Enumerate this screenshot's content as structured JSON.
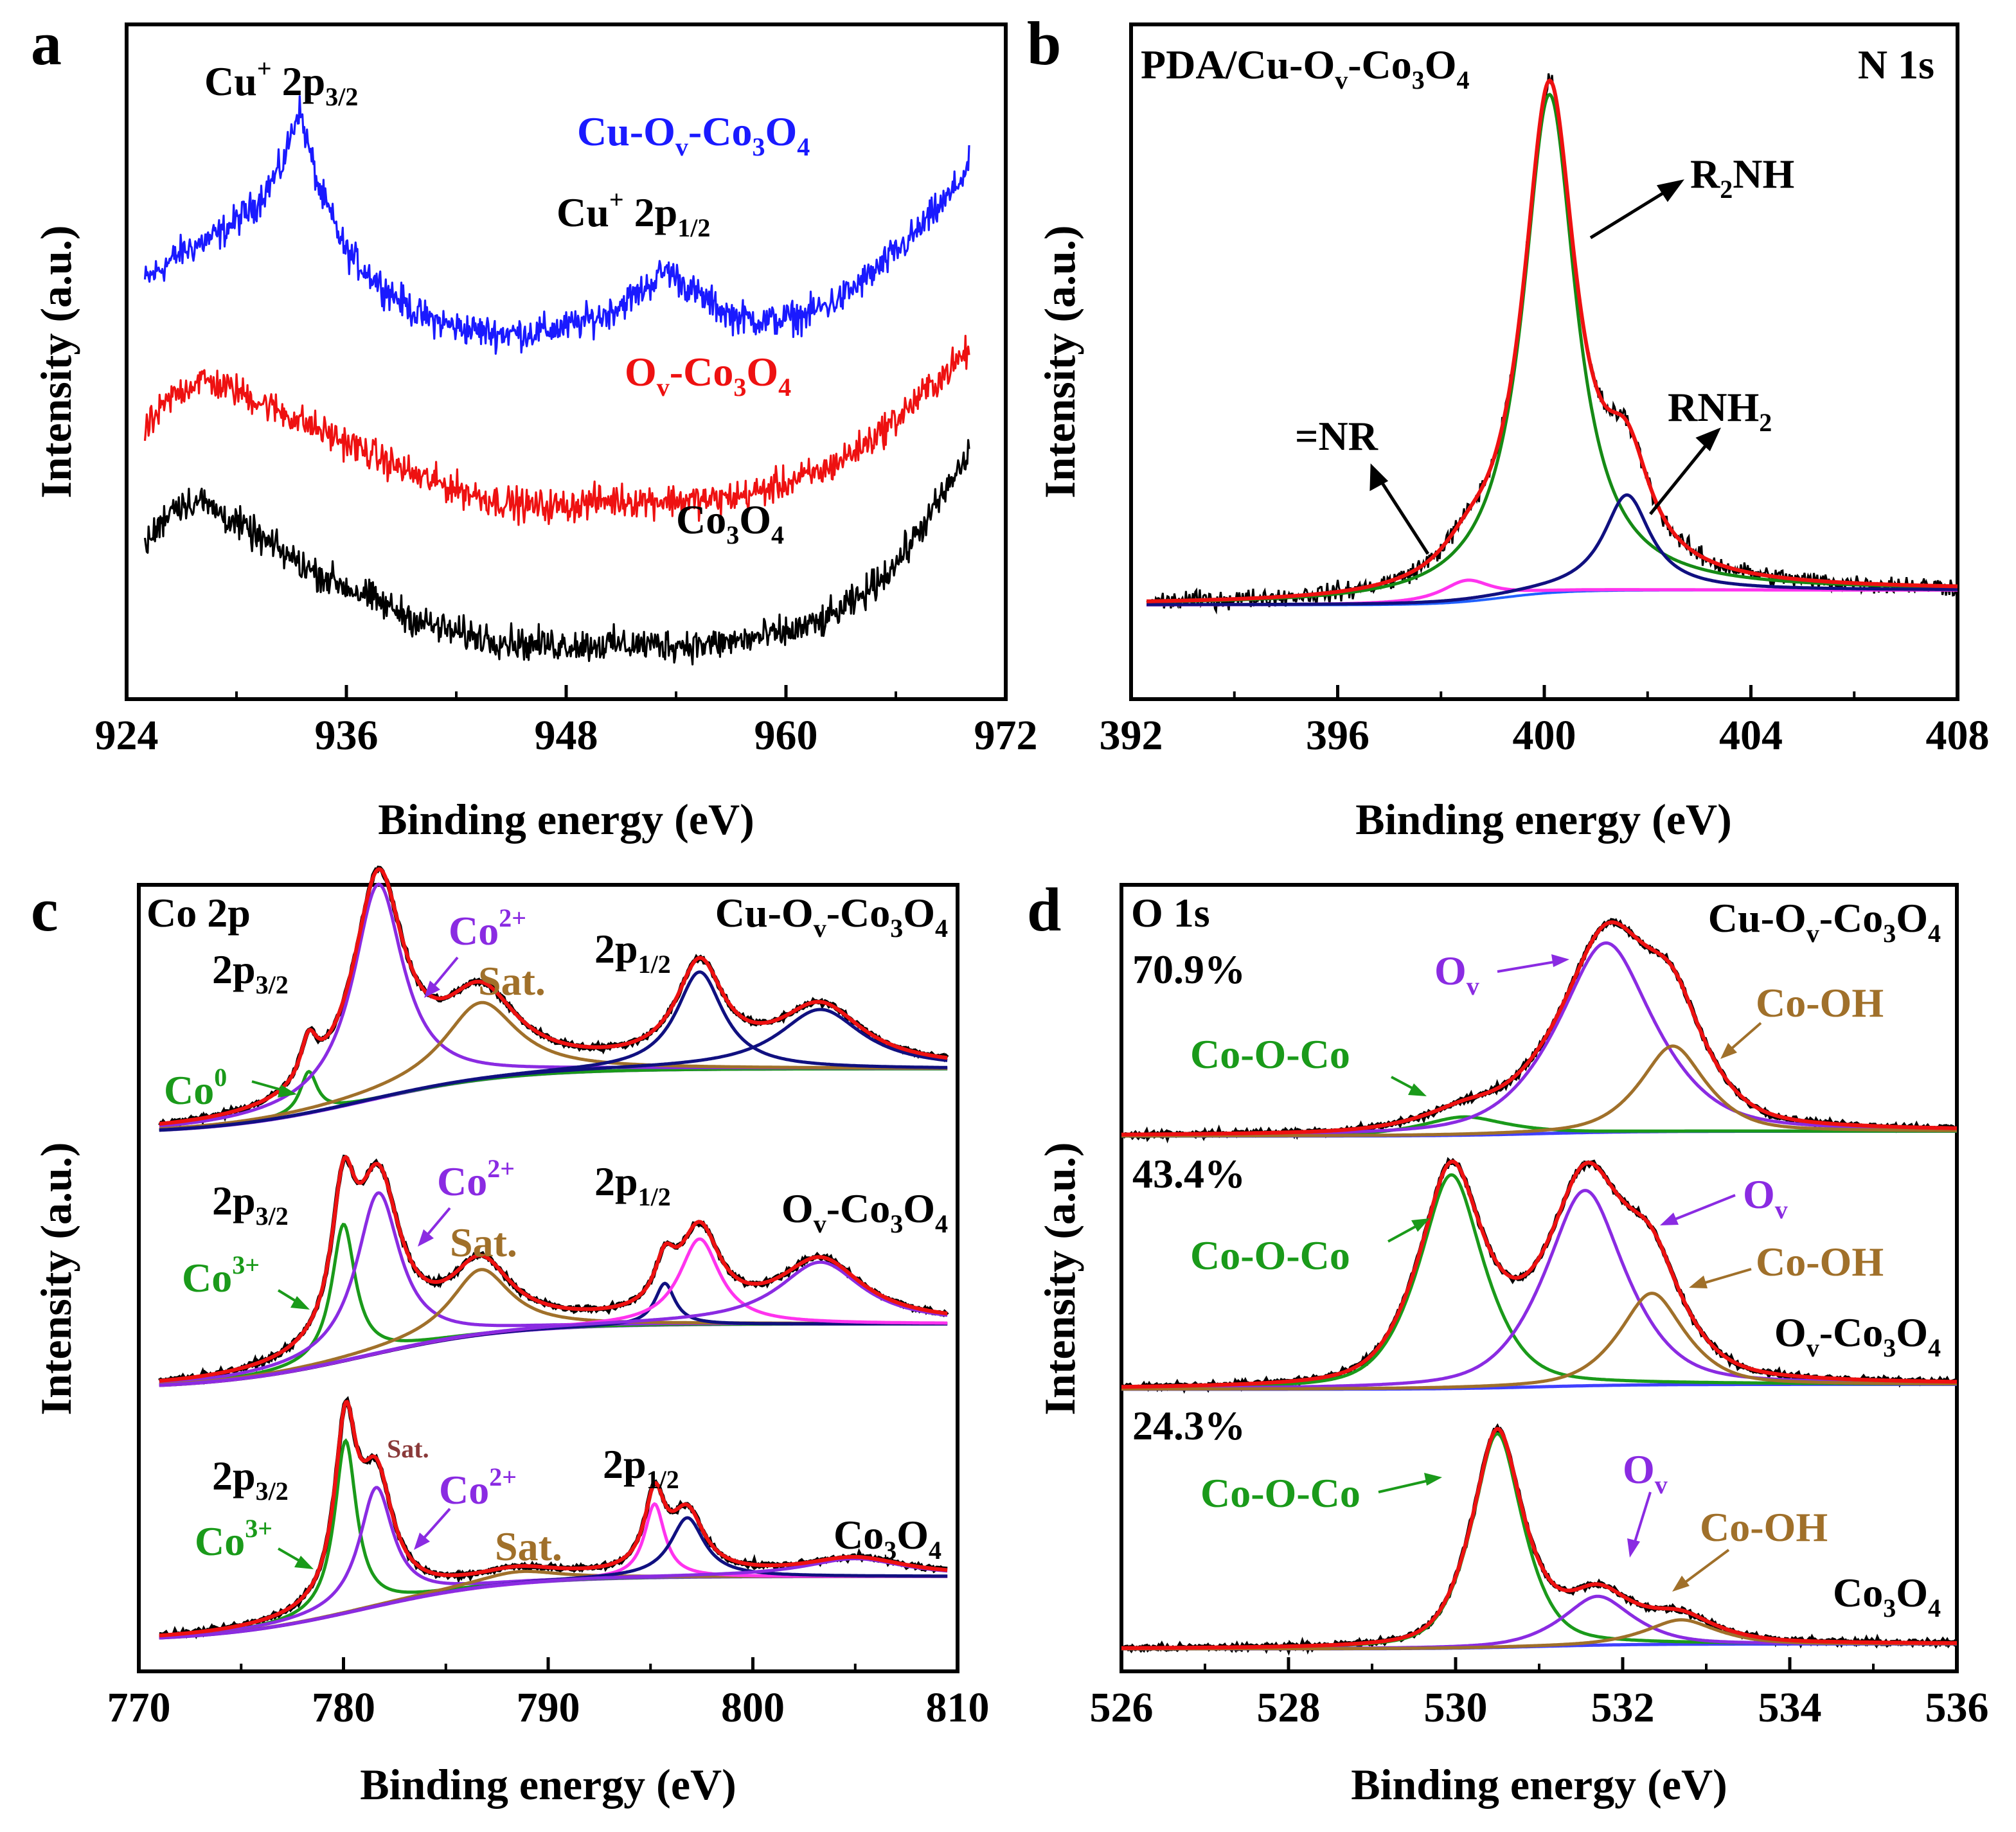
{
  "chart_data": [
    {
      "panel": "a",
      "type": "line",
      "xlabel": "Binding energy (eV)",
      "ylabel": "Intensity (a.u.)",
      "xlim": [
        924,
        972
      ],
      "xticks": [
        "924",
        "936",
        "948",
        "960",
        "972"
      ],
      "annotations": [
        {
          "id": "cu-2p32",
          "text": "Cu",
          "sup": "+",
          "rest": " 2p",
          "sub": "3/2",
          "color": "#000000"
        },
        {
          "id": "cu-2p12",
          "text": "Cu",
          "sup": "+",
          "rest": " 2p",
          "sub": "1/2",
          "color": "#000000"
        }
      ],
      "series": [
        {
          "name": "Cu-Ov-Co3O4",
          "label_parts": [
            "Cu-O",
            "v",
            "-Co",
            "3",
            "O",
            "4"
          ],
          "color": "#1a1aff",
          "x": [
            925,
            927,
            929,
            931,
            932.5,
            933.4,
            934.5,
            936,
            938,
            940,
            942,
            944,
            946,
            948,
            950,
            952,
            953.5,
            955,
            957,
            959,
            961,
            963,
            965,
            967,
            969,
            970
          ],
          "y": [
            6.8,
            7.3,
            7.6,
            8.1,
            8.8,
            9.8,
            8.4,
            7.3,
            6.7,
            6.2,
            6.0,
            5.9,
            5.9,
            6.0,
            6.2,
            6.6,
            7.0,
            6.6,
            6.2,
            6.1,
            6.2,
            6.5,
            7.0,
            7.6,
            8.3,
            8.8
          ]
        },
        {
          "name": "Ov-Co3O4",
          "label_parts": [
            "O",
            "v",
            "-Co",
            "3",
            "O",
            "4"
          ],
          "color": "#ee1111",
          "x": [
            925,
            926.5,
            928,
            930,
            932,
            934,
            936,
            938,
            940,
            942,
            944,
            946,
            948,
            950,
            952,
            954,
            956,
            958,
            960,
            962,
            964,
            966,
            968,
            970
          ],
          "y": [
            4.2,
            4.8,
            5.1,
            4.9,
            4.6,
            4.3,
            4.0,
            3.7,
            3.4,
            3.2,
            3.0,
            2.9,
            2.9,
            3.0,
            3.0,
            3.0,
            3.0,
            3.1,
            3.3,
            3.5,
            3.9,
            4.4,
            5.0,
            5.6
          ]
        },
        {
          "name": "Co3O4",
          "label_parts": [
            "Co",
            "3",
            "O",
            "4"
          ],
          "color": "#000000",
          "x": [
            925,
            926.5,
            928,
            930,
            932,
            934,
            936,
            938,
            940,
            942,
            944,
            946,
            948,
            950,
            952,
            954,
            956,
            958,
            960,
            962,
            964,
            966,
            968,
            970
          ],
          "y": [
            2.2,
            2.9,
            3.0,
            2.6,
            2.2,
            1.8,
            1.5,
            1.2,
            0.9,
            0.7,
            0.6,
            0.5,
            0.5,
            0.5,
            0.5,
            0.5,
            0.5,
            0.6,
            0.7,
            0.9,
            1.3,
            1.9,
            2.8,
            3.8
          ]
        }
      ]
    },
    {
      "panel": "b",
      "type": "line",
      "title_parts": [
        "PDA/Cu-O",
        "v",
        "-Co",
        "3",
        "O",
        "4"
      ],
      "region": "N 1s",
      "xlabel": "Binding energy (eV)",
      "ylabel": "Intensity (a.u.)",
      "xlim": [
        392,
        408
      ],
      "xticks": [
        "392",
        "396",
        "400",
        "404",
        "408"
      ],
      "baseline_left": 0.05,
      "baseline_right": 0.12,
      "peaks": [
        {
          "name": "=NR",
          "label_parts": [
            "=NR"
          ],
          "center": 398.5,
          "height": 0.1,
          "width": 0.6,
          "color": "#ff33ee"
        },
        {
          "name": "R2NH",
          "label_parts": [
            "R",
            "2",
            "NH"
          ],
          "center": 400.1,
          "height": 2.35,
          "width": 0.62,
          "color": "#158a15"
        },
        {
          "name": "RNH2",
          "label_parts": [
            "RNH",
            "2"
          ],
          "center": 401.6,
          "height": 0.45,
          "width": 0.55,
          "color": "#101080"
        }
      ],
      "envelope_color": "#ee1111",
      "raw_color": "#000000"
    },
    {
      "panel": "c",
      "type": "line",
      "region": "Co 2p",
      "xlabel": "Binding energy (eV)",
      "ylabel": "Intensity (a.u.)",
      "xlim": [
        770,
        810
      ],
      "xticks": [
        "770",
        "780",
        "790",
        "800",
        "810"
      ],
      "spectra": [
        {
          "name": "Cu-Ov-Co3O4",
          "label_parts": [
            "Cu-O",
            "v",
            "-Co",
            "3",
            "O",
            "4"
          ],
          "labels": {
            "p32": "2p",
            "p32sub": "3/2",
            "p12": "2p",
            "p12sub": "1/2",
            "co_state": "Co",
            "co_sup": "0",
            "co2": "Co",
            "co2_sup": "2+",
            "sat": "Sat."
          },
          "peaks": [
            {
              "name": "Co0",
              "center": 778.3,
              "height": 0.35,
              "width": 0.5,
              "color": "#1a9a1a"
            },
            {
              "name": "Co2+ 2p3/2",
              "center": 781.7,
              "height": 1.8,
              "width": 1.5,
              "color": "#8a2be2"
            },
            {
              "name": "Sat. 2p3/2",
              "center": 786.7,
              "height": 0.65,
              "width": 2.2,
              "color": "#a0702a"
            },
            {
              "name": "Co2+ 2p1/2",
              "center": 797.4,
              "height": 0.82,
              "width": 1.4,
              "color": "#101080"
            },
            {
              "name": "Sat. 2p1/2",
              "center": 803.3,
              "height": 0.5,
              "width": 2.5,
              "color": "#101080"
            }
          ]
        },
        {
          "name": "Ov-Co3O4",
          "label_parts": [
            "O",
            "v",
            "-Co",
            "3",
            "O",
            "4"
          ],
          "labels": {
            "p32": "2p",
            "p32sub": "3/2",
            "p12": "2p",
            "p12sub": "1/2",
            "co_state": "Co",
            "co_sup": "3+",
            "co2": "Co",
            "co2_sup": "2+",
            "sat": "Sat."
          },
          "peaks": [
            {
              "name": "Co3+ 2p3/2",
              "center": 780.0,
              "height": 1.15,
              "width": 0.7,
              "color": "#1a9a1a"
            },
            {
              "name": "Co2+ 2p3/2",
              "center": 781.7,
              "height": 1.35,
              "width": 1.3,
              "color": "#8a2be2"
            },
            {
              "name": "Sat. 2p3/2",
              "center": 786.7,
              "height": 0.55,
              "width": 1.8,
              "color": "#a0702a"
            },
            {
              "name": "Co3+ 2p1/2",
              "center": 795.7,
              "height": 0.35,
              "width": 0.6,
              "color": "#101080"
            },
            {
              "name": "Co2+ 2p1/2",
              "center": 797.4,
              "height": 0.72,
              "width": 1.2,
              "color": "#ff33ee"
            },
            {
              "name": "Sat. 2p1/2",
              "center": 803.3,
              "height": 0.52,
              "width": 2.5,
              "color": "#8a2be2"
            }
          ]
        },
        {
          "name": "Co3O4",
          "label_parts": [
            "Co",
            "3",
            "O",
            "4"
          ],
          "labels": {
            "p32": "2p",
            "p32sub": "3/2",
            "p12": "2p",
            "p12sub": "1/2",
            "co_state": "Co",
            "co_sup": "3+",
            "co2": "Co",
            "co2_sup": "2+",
            "sat": "Sat.",
            "sat_small": "Sat."
          },
          "peaks": [
            {
              "name": "Co3+ 2p3/2",
              "center": 780.1,
              "height": 1.45,
              "width": 0.65,
              "color": "#1a9a1a"
            },
            {
              "name": "Co2+ 2p3/2",
              "center": 781.6,
              "height": 1.0,
              "width": 1.0,
              "color": "#8a2be2"
            },
            {
              "name": "Sat. 2p3/2",
              "center": 788.5,
              "height": 0.1,
              "width": 2.5,
              "color": "#a0702a"
            },
            {
              "name": "Co3+ 2p1/2",
              "center": 795.2,
              "height": 0.62,
              "width": 0.6,
              "color": "#ff33ee"
            },
            {
              "name": "Co2+ 2p1/2",
              "center": 796.8,
              "height": 0.5,
              "width": 1.0,
              "color": "#101080"
            },
            {
              "name": "Sat. 2p1/2",
              "center": 805.0,
              "height": 0.15,
              "width": 3.0,
              "color": "#8a2be2"
            }
          ]
        }
      ]
    },
    {
      "panel": "d",
      "type": "line",
      "region": "O 1s",
      "xlabel": "Binding energy (eV)",
      "ylabel": "Intensity (a.u.)",
      "xlim": [
        526,
        536
      ],
      "xticks": [
        "526",
        "528",
        "530",
        "532",
        "534",
        "536"
      ],
      "spectra": [
        {
          "name": "Cu-Ov-Co3O4",
          "label_parts": [
            "Cu-O",
            "v",
            "-Co",
            "3",
            "O",
            "4"
          ],
          "percent": "70.9%",
          "labels": {
            "coco": "Co-O-Co",
            "ov": "O",
            "ov_sub": "v",
            "cooh": "Co-OH"
          },
          "peaks": [
            {
              "name": "Co-O-Co",
              "center": 530.1,
              "height": 0.15,
              "width": 0.55,
              "color": "#1a9a1a"
            },
            {
              "name": "Ov",
              "center": 531.8,
              "height": 1.55,
              "width": 0.62,
              "color": "#8a2be2"
            },
            {
              "name": "Co-OH",
              "center": 532.6,
              "height": 0.7,
              "width": 0.42,
              "color": "#a0702a"
            }
          ]
        },
        {
          "name": "Ov-Co3O4",
          "label_parts": [
            "O",
            "v",
            "-Co",
            "3",
            "O",
            "4"
          ],
          "percent": "43.4%",
          "labels": {
            "coco": "Co-O-Co",
            "ov": "O",
            "ov_sub": "v",
            "cooh": "Co-OH"
          },
          "peaks": [
            {
              "name": "Co-O-Co",
              "center": 529.95,
              "height": 1.75,
              "width": 0.42,
              "color": "#1a9a1a"
            },
            {
              "name": "Ov",
              "center": 531.55,
              "height": 1.6,
              "width": 0.52,
              "color": "#8a2be2"
            },
            {
              "name": "Co-OH",
              "center": 532.35,
              "height": 0.75,
              "width": 0.42,
              "color": "#a0702a"
            }
          ]
        },
        {
          "name": "Co3O4",
          "label_parts": [
            "Co",
            "3",
            "O",
            "4"
          ],
          "percent": "24.3%",
          "labels": {
            "coco": "Co-O-Co",
            "ov": "O",
            "ov_sub": "v",
            "cooh": "Co-OH"
          },
          "peaks": [
            {
              "name": "Co-O-Co",
              "center": 530.5,
              "height": 1.75,
              "width": 0.33,
              "color": "#1a9a1a"
            },
            {
              "name": "Ov",
              "center": 531.7,
              "height": 0.4,
              "width": 0.45,
              "color": "#8a2be2"
            },
            {
              "name": "Co-OH",
              "center": 532.7,
              "height": 0.2,
              "width": 0.45,
              "color": "#a0702a"
            }
          ]
        }
      ]
    }
  ],
  "colors": {
    "envelope": "#ee1111",
    "raw": "#000000",
    "background": "#4040ff",
    "background2": "#8a2be2"
  }
}
